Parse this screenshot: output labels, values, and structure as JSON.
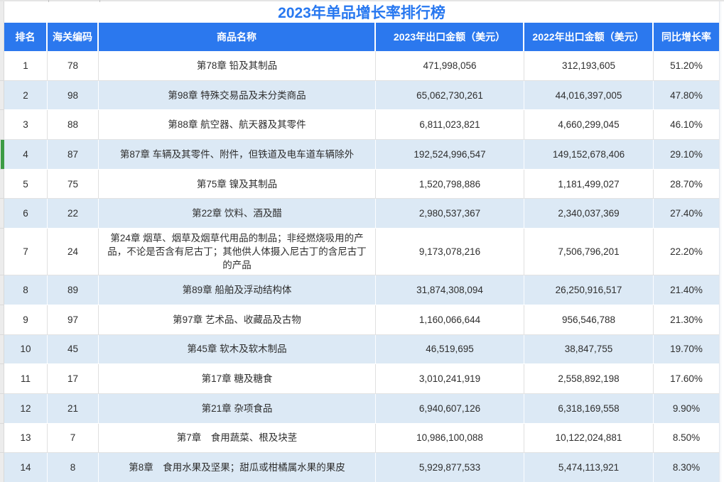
{
  "title": "2023年单品增长率排行榜",
  "colors": {
    "header_bg": "#2B78EE",
    "title_color": "#2878F0",
    "alt_row_bg": "#DCE9F5",
    "selected_accent": "#3C9B45"
  },
  "table": {
    "columns": [
      {
        "label": "排名"
      },
      {
        "label": "海关编码"
      },
      {
        "label": "商品名称"
      },
      {
        "label": "2023年出口金额（美元）"
      },
      {
        "label": "2022年出口金额（美元）"
      },
      {
        "label": "同比增长率"
      }
    ],
    "rows": [
      {
        "rank": "1",
        "hs_code": "78",
        "product": "第78章 铅及其制品",
        "export_2023": "471,998,056",
        "export_2022": "312,193,605",
        "growth": "51.20%",
        "selected": false
      },
      {
        "rank": "2",
        "hs_code": "98",
        "product": "第98章 特殊交易品及未分类商品",
        "export_2023": "65,062,730,261",
        "export_2022": "44,016,397,005",
        "growth": "47.80%",
        "selected": false
      },
      {
        "rank": "3",
        "hs_code": "88",
        "product": "第88章 航空器、航天器及其零件",
        "export_2023": "6,811,023,821",
        "export_2022": "4,660,299,045",
        "growth": "46.10%",
        "selected": false
      },
      {
        "rank": "4",
        "hs_code": "87",
        "product": "第87章 车辆及其零件、附件，但铁道及电车道车辆除外",
        "export_2023": "192,524,996,547",
        "export_2022": "149,152,678,406",
        "growth": "29.10%",
        "selected": true
      },
      {
        "rank": "5",
        "hs_code": "75",
        "product": "第75章 镍及其制品",
        "export_2023": "1,520,798,886",
        "export_2022": "1,181,499,027",
        "growth": "28.70%",
        "selected": false
      },
      {
        "rank": "6",
        "hs_code": "22",
        "product": "第22章 饮料、酒及醋",
        "export_2023": "2,980,537,367",
        "export_2022": "2,340,037,369",
        "growth": "27.40%",
        "selected": false
      },
      {
        "rank": "7",
        "hs_code": "24",
        "product": "第24章 烟草、烟草及烟草代用品的制品；非经燃烧吸用的产品，不论是否含有尼古丁；其他供人体摄入尼古丁的含尼古丁的产品",
        "export_2023": "9,173,078,216",
        "export_2022": "7,506,796,201",
        "growth": "22.20%",
        "selected": false
      },
      {
        "rank": "8",
        "hs_code": "89",
        "product": "第89章 船舶及浮动结构体",
        "export_2023": "31,874,308,094",
        "export_2022": "26,250,916,517",
        "growth": "21.40%",
        "selected": false
      },
      {
        "rank": "9",
        "hs_code": "97",
        "product": "第97章 艺术品、收藏品及古物",
        "export_2023": "1,160,066,644",
        "export_2022": "956,546,788",
        "growth": "21.30%",
        "selected": false
      },
      {
        "rank": "10",
        "hs_code": "45",
        "product": "第45章 软木及软木制品",
        "export_2023": "46,519,695",
        "export_2022": "38,847,755",
        "growth": "19.70%",
        "selected": false
      },
      {
        "rank": "11",
        "hs_code": "17",
        "product": "第17章 糖及糖食",
        "export_2023": "3,010,241,919",
        "export_2022": "2,558,892,198",
        "growth": "17.60%",
        "selected": false
      },
      {
        "rank": "12",
        "hs_code": "21",
        "product": "第21章 杂项食品",
        "export_2023": "6,940,607,126",
        "export_2022": "6,318,169,558",
        "growth": "9.90%",
        "selected": false
      },
      {
        "rank": "13",
        "hs_code": "7",
        "product": "第7章　食用蔬菜、根及块茎",
        "export_2023": "10,986,100,088",
        "export_2022": "10,122,024,881",
        "growth": "8.50%",
        "selected": false
      },
      {
        "rank": "14",
        "hs_code": "8",
        "product": "第8章　食用水果及坚果；甜瓜或柑橘属水果的果皮",
        "export_2023": "5,929,877,533",
        "export_2022": "5,474,113,921",
        "growth": "8.30%",
        "selected": false
      }
    ]
  }
}
